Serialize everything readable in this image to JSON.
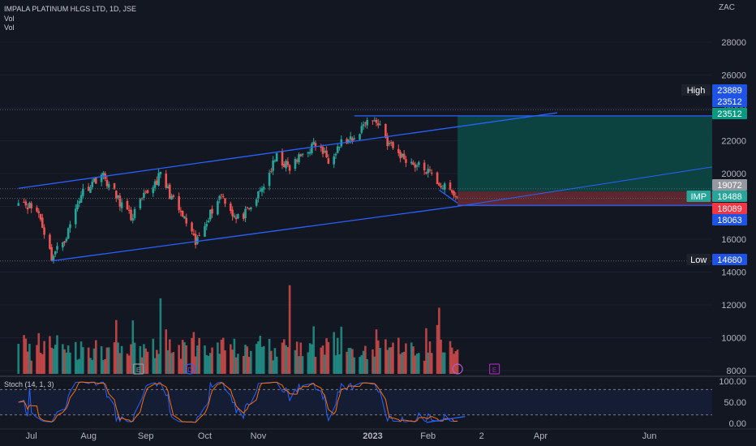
{
  "header": {
    "title": "IMPALA PLATINUM HLGS LTD, 1D, JSE",
    "vol1": "Vol",
    "vol2": "Vol",
    "currency": "ZAC"
  },
  "stoch": {
    "label": "Stoch (14, 1, 3)"
  },
  "colors": {
    "background": "#131722",
    "up": "#26a69a",
    "down": "#ef5350",
    "trendline": "#2962ff",
    "stoch_k": "#2962ff",
    "stoch_d": "#ff6d00"
  },
  "chart_data": {
    "type": "candlestick",
    "price_axis_ticks": [
      "28000",
      "26000",
      "24000",
      "22000",
      "20000",
      "18000",
      "16000",
      "14000",
      "12000",
      "10000",
      "8000"
    ],
    "time_axis_labels": [
      "Jul",
      "Aug",
      "Sep",
      "Oct",
      "Nov",
      "2023",
      "Feb",
      "2",
      "Apr",
      "Jun"
    ],
    "price_labels": [
      {
        "title": "High",
        "value": "23889",
        "color": "#1e53e5"
      },
      {
        "title": "",
        "value": "23512",
        "color": "#1e53e5"
      },
      {
        "title": "",
        "value": "23512",
        "color": "#089981"
      },
      {
        "title": "",
        "value": "19072",
        "color": "#9598a1"
      },
      {
        "title": "IMP",
        "value": "18488",
        "color": "#26a69a"
      },
      {
        "title": "",
        "value": "18089",
        "color": "#f23645"
      },
      {
        "title": "",
        "value": "18063",
        "color": "#1e53e5"
      },
      {
        "title": "Low",
        "value": "14680",
        "color": "#1e53e5"
      }
    ],
    "close_path": [
      [
        "2022-06-24",
        18500
      ],
      [
        "2022-07-05",
        17600
      ],
      [
        "2022-07-12",
        14900
      ],
      [
        "2022-07-20",
        16200
      ],
      [
        "2022-07-28",
        18800
      ],
      [
        "2022-08-08",
        20000
      ],
      [
        "2022-08-16",
        18600
      ],
      [
        "2022-08-24",
        17300
      ],
      [
        "2022-09-01",
        18700
      ],
      [
        "2022-09-09",
        19900
      ],
      [
        "2022-09-16",
        18300
      ],
      [
        "2022-09-23",
        17000
      ],
      [
        "2022-09-28",
        15700
      ],
      [
        "2022-10-04",
        17200
      ],
      [
        "2022-10-12",
        18800
      ],
      [
        "2022-10-20",
        17200
      ],
      [
        "2022-10-27",
        17700
      ],
      [
        "2022-11-04",
        19300
      ],
      [
        "2022-11-11",
        21000
      ],
      [
        "2022-11-18",
        20300
      ],
      [
        "2022-11-25",
        21200
      ],
      [
        "2022-12-02",
        21800
      ],
      [
        "2022-12-09",
        20900
      ],
      [
        "2022-12-16",
        21900
      ],
      [
        "2022-12-23",
        22000
      ],
      [
        "2022-12-30",
        23400
      ],
      [
        "2023-01-06",
        23000
      ],
      [
        "2023-01-10",
        21900
      ],
      [
        "2023-01-17",
        21100
      ],
      [
        "2023-01-24",
        20600
      ],
      [
        "2023-01-31",
        20200
      ],
      [
        "2023-02-07",
        19400
      ],
      [
        "2023-02-14",
        18800
      ],
      [
        "2023-02-17",
        18488
      ]
    ],
    "trend_channel": {
      "upper_line": [
        [
          "2022-06-24",
          19100
        ],
        [
          "2023-04-12",
          23700
        ]
      ],
      "lower_line": [
        [
          "2022-07-12",
          14680
        ],
        [
          "2023-02-17",
          18000
        ]
      ]
    },
    "position": {
      "entry": 18900,
      "target": 23512,
      "stop": 18063,
      "start": "2023-02-17",
      "end": "2023-06-30"
    },
    "volume_axis_ticks": [
      "8000"
    ],
    "volume_event_markers": [
      "E",
      "D",
      "E"
    ],
    "stoch_axis_ticks": [
      "100.00",
      "50.00",
      "0.00"
    ],
    "stoch_bands": [
      80,
      20
    ]
  }
}
